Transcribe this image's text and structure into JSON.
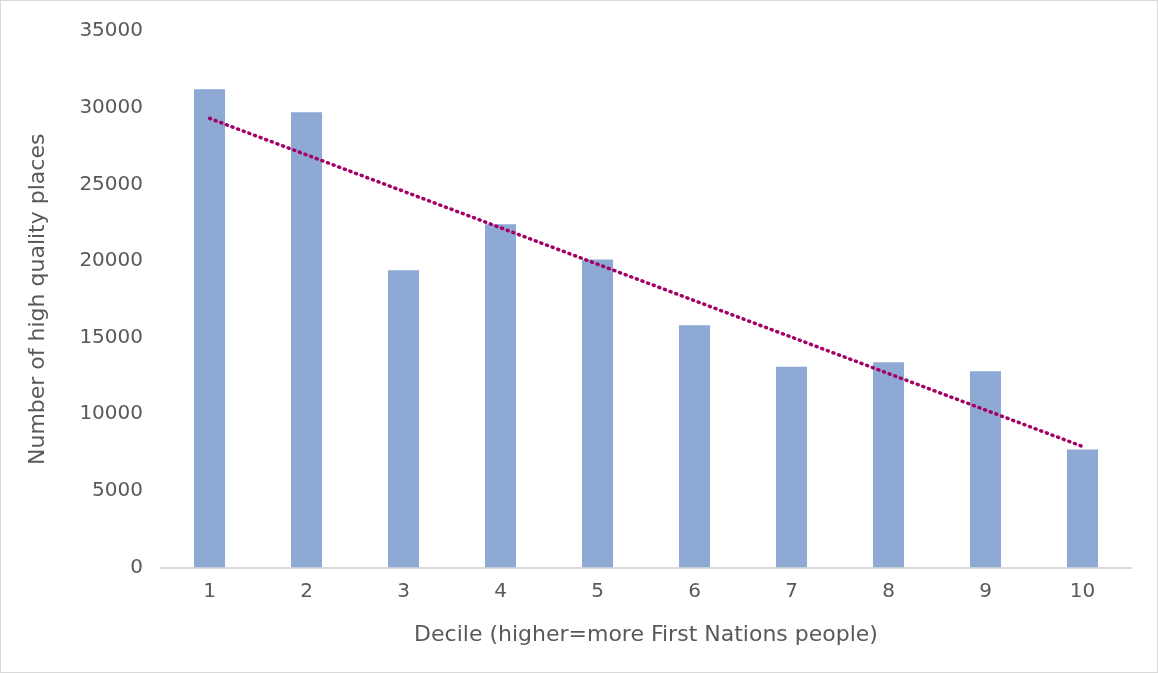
{
  "chart_data": {
    "type": "bar",
    "xlabel": "Decile (higher=more First Nations people)",
    "ylabel": "Number of high quality places",
    "categories": [
      "1",
      "2",
      "3",
      "4",
      "5",
      "6",
      "7",
      "8",
      "9",
      "10"
    ],
    "series": [
      {
        "color": "#8eaad4",
        "values": [
          31200,
          29700,
          19400,
          22400,
          20100,
          15800,
          13100,
          13400,
          12800,
          7700
        ]
      },
      {
        "type": "line",
        "color": "#a50064",
        "line_style": "dotted",
        "marker": "none",
        "x": [
          "1",
          "10"
        ],
        "values": [
          29300,
          7900
        ]
      }
    ],
    "ylim": [
      0,
      35000
    ],
    "yticks": [
      0,
      5000,
      10000,
      15000,
      20000,
      25000,
      30000,
      35000
    ],
    "grid": false,
    "legend": false
  }
}
